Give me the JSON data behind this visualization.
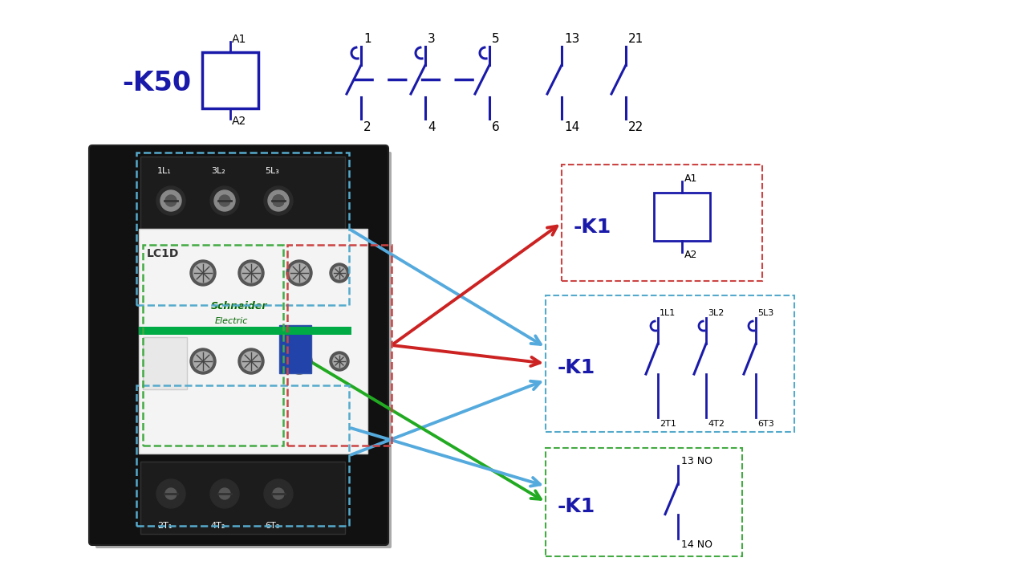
{
  "bg_color": "#ffffff",
  "blue": "#1a1aaa",
  "dark_navy": "#00008B",
  "red_arrow": "#cc2222",
  "green_arrow": "#22aa22",
  "cyan_arrow": "#55aadd",
  "box_red": "#cc4444",
  "box_cyan": "#55aacc",
  "box_green": "#44aa44",
  "label_k50": "-K50",
  "label_k1": "-K1",
  "sw_top_labels": [
    "1",
    "3",
    "5",
    "13",
    "21"
  ],
  "sw_bot_labels": [
    "2",
    "4",
    "6",
    "14",
    "22"
  ],
  "rb2_top_labels": [
    "1L1",
    "3L2",
    "5L3"
  ],
  "rb2_bot_labels": [
    "2T1",
    "4T2",
    "6T3"
  ],
  "rb3_top": "13 NO",
  "rb3_bot": "14 NO",
  "photo_top_labels": [
    "1L₁",
    "3L₂",
    "5L₃"
  ],
  "photo_bot_labels": [
    "2T₁",
    "4T₂",
    "6T₃"
  ]
}
